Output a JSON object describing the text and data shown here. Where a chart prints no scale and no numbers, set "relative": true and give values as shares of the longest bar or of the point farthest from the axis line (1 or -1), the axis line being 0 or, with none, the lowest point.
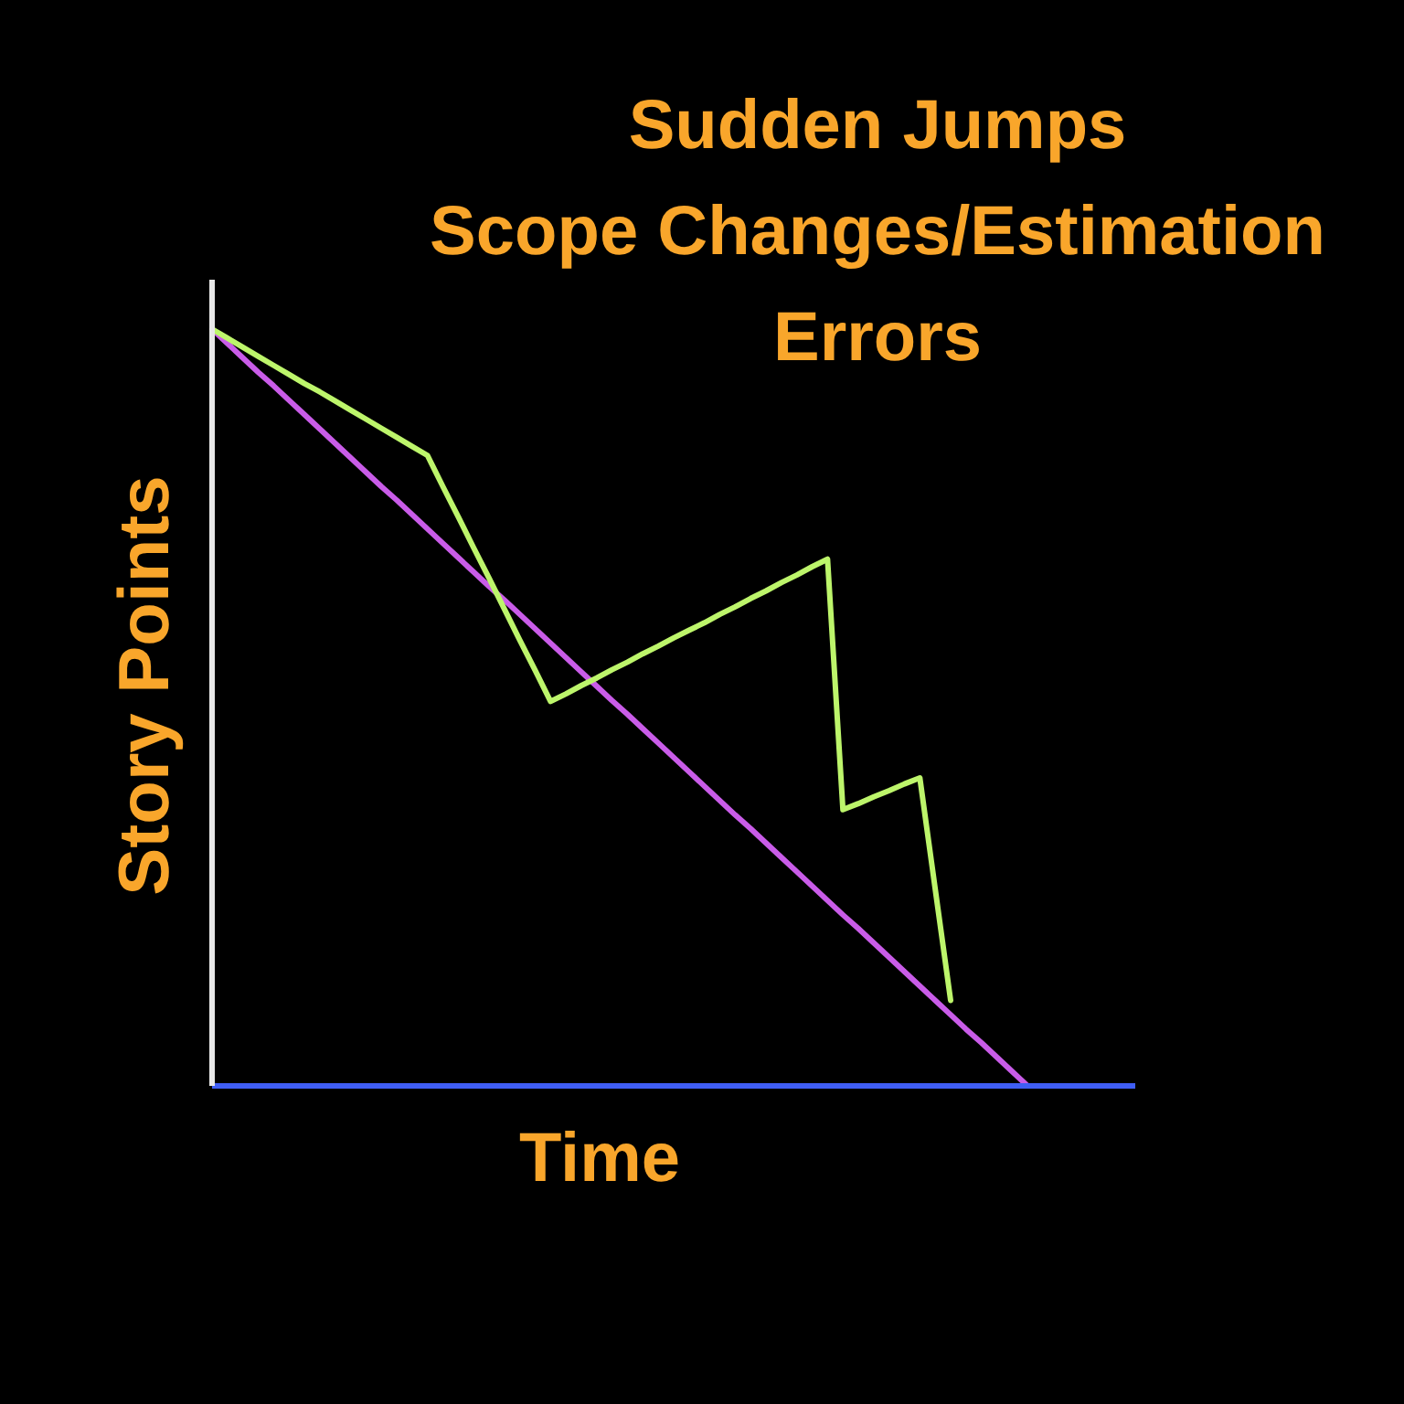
{
  "chart_data": {
    "type": "line",
    "title": "Sudden Jumps",
    "subtitle": "Scope Changes/Estimation Errors",
    "xlabel": "Time",
    "ylabel": "Story Points",
    "relative": true,
    "categories": [
      null,
      null,
      null,
      null,
      null,
      null,
      null,
      null,
      null,
      null,
      null,
      null,
      null,
      null,
      null,
      null,
      null,
      null,
      null,
      null,
      null,
      null,
      null,
      null,
      null,
      null,
      null,
      null,
      null,
      null,
      null,
      null,
      null,
      null,
      null,
      null,
      null,
      null,
      null,
      null,
      null,
      null,
      null,
      null,
      null,
      null,
      null,
      null,
      null,
      null,
      null,
      null,
      null,
      null,
      null,
      null,
      null,
      null,
      null,
      null,
      null
    ],
    "series": [
      {
        "color": "#c95ce8",
        "values": [
          1,
          0.981,
          0.962,
          0.943,
          0.925,
          0.906,
          0.887,
          0.868,
          0.849,
          0.83,
          0.811,
          0.792,
          0.774,
          0.755,
          0.736,
          0.717,
          0.698,
          0.679,
          0.66,
          0.642,
          0.623,
          0.604,
          0.585,
          0.566,
          0.547,
          0.528,
          0.509,
          0.491,
          0.472,
          0.453,
          0.434,
          0.415,
          0.396,
          0.377,
          0.358,
          0.34,
          0.321,
          0.302,
          0.283,
          0.264,
          0.245,
          0.226,
          0.208,
          0.189,
          0.17,
          0.151,
          0.132,
          0.113,
          0.094,
          0.075,
          0.057,
          0.038,
          0.019,
          0,
          null,
          null,
          null,
          null,
          null,
          null,
          null
        ]
      },
      {
        "color": "#bdf56b",
        "values": [
          1,
          0.988,
          0.976,
          0.964,
          0.952,
          0.94,
          0.928,
          0.917,
          0.905,
          0.893,
          0.881,
          0.869,
          0.857,
          0.845,
          0.833,
          0.792,
          0.752,
          0.711,
          0.671,
          0.63,
          0.589,
          0.549,
          0.508,
          0.518,
          0.529,
          0.539,
          0.55,
          0.56,
          0.571,
          0.581,
          0.592,
          0.602,
          0.612,
          0.623,
          0.633,
          0.644,
          0.654,
          0.665,
          0.675,
          0.686,
          0.696,
          0.365,
          0.373,
          0.382,
          0.39,
          0.399,
          0.407,
          0.26,
          0.113,
          null,
          null,
          null,
          null,
          null,
          null,
          null,
          null,
          null,
          null,
          null,
          null
        ]
      }
    ]
  }
}
